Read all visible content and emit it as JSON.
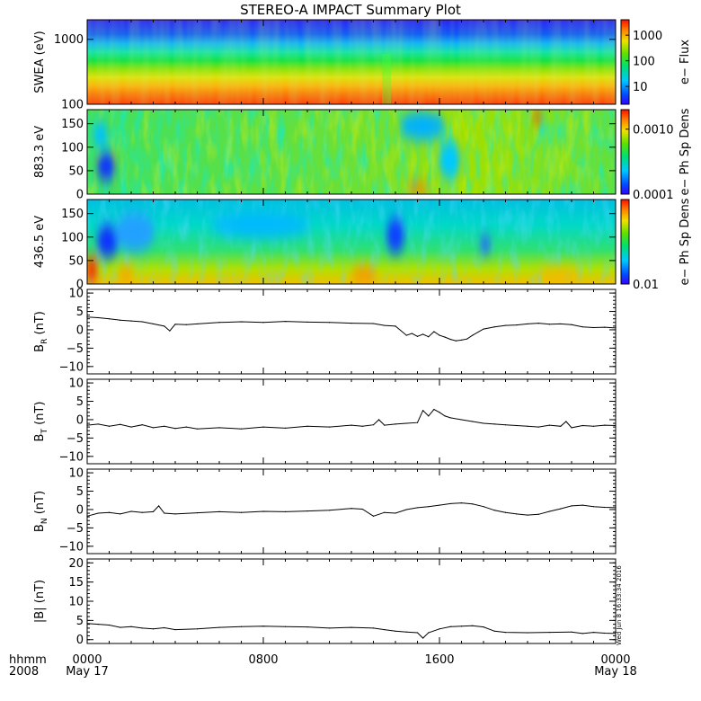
{
  "title": "STEREO-A IMPACT Summary Plot",
  "stamp": "Wed Jun  8 16:33:34 2016",
  "time_axis": {
    "label_line1": "hhmm",
    "label_line2": "2008",
    "ticks": [
      {
        "hours": 0,
        "label": "0000",
        "sub": "May 17"
      },
      {
        "hours": 8,
        "label": "0800",
        "sub": ""
      },
      {
        "hours": 16,
        "label": "1600",
        "sub": ""
      },
      {
        "hours": 24,
        "label": "0000",
        "sub": "May 18"
      }
    ]
  },
  "chart_data": [
    {
      "type": "heatmap",
      "ylabel": "SWEA (eV)",
      "yscale": "log",
      "ylim": [
        100,
        2000
      ],
      "yticks": [
        {
          "v": 100,
          "label": "100"
        },
        {
          "v": 1000,
          "label": "1000"
        }
      ],
      "colorbar": {
        "label": "e− Flux",
        "scale": "log",
        "range": [
          2,
          4000
        ],
        "ticks": [
          {
            "v": 10,
            "label": "10"
          },
          {
            "v": 100,
            "label": "100"
          },
          {
            "v": 1000,
            "label": "1000"
          }
        ]
      }
    },
    {
      "type": "heatmap",
      "ylabel": "883.3 eV",
      "ylim": [
        0,
        180
      ],
      "yticks": [
        {
          "v": 0,
          "label": "0"
        },
        {
          "v": 50,
          "label": "50"
        },
        {
          "v": 100,
          "label": "100"
        },
        {
          "v": 150,
          "label": "150"
        }
      ],
      "colorbar": {
        "label": "e− Ph Sp Dens",
        "scale": "log",
        "range": [
          0.0001,
          0.002
        ],
        "ticks": [
          {
            "v": 0.0001,
            "label": "0.0001"
          },
          {
            "v": 0.001,
            "label": "0.0010"
          }
        ]
      }
    },
    {
      "type": "heatmap",
      "ylabel": "436.5 eV",
      "ylim": [
        0,
        180
      ],
      "yticks": [
        {
          "v": 0,
          "label": "0"
        },
        {
          "v": 50,
          "label": "50"
        },
        {
          "v": 100,
          "label": "100"
        },
        {
          "v": 150,
          "label": "150"
        }
      ],
      "colorbar": {
        "label": "e− Ph Sp Dens",
        "scale": "log",
        "range": [
          0.01,
          0.1
        ],
        "ticks": [
          {
            "v": 0.01,
            "label": "0.01"
          }
        ]
      }
    },
    {
      "type": "line",
      "ylabel": "B",
      "ysub": "R",
      "yunit": " (nT)",
      "ylim": [
        -12,
        11
      ],
      "yticks": [
        {
          "v": -10,
          "label": "−10"
        },
        {
          "v": -5,
          "label": "−5"
        },
        {
          "v": 0,
          "label": "0"
        },
        {
          "v": 5,
          "label": "5"
        },
        {
          "v": 10,
          "label": "10"
        }
      ],
      "x": [
        0,
        0.5,
        1,
        1.5,
        2,
        2.5,
        3,
        3.5,
        3.75,
        4,
        4.5,
        5,
        6,
        7,
        8,
        9,
        10,
        11,
        12,
        13,
        13.5,
        14,
        14.5,
        14.75,
        15,
        15.25,
        15.5,
        15.75,
        16,
        16.25,
        16.5,
        16.75,
        17,
        17.25,
        17.5,
        18,
        18.5,
        19,
        19.5,
        20,
        20.5,
        21,
        21.5,
        22,
        22.5,
        23,
        23.5,
        24
      ],
      "y": [
        3.5,
        3.3,
        3.0,
        2.6,
        2.4,
        2.2,
        1.6,
        1.0,
        -0.3,
        1.5,
        1.4,
        1.6,
        2.0,
        2.2,
        2.0,
        2.3,
        2.1,
        2.0,
        1.8,
        1.7,
        1.2,
        1.0,
        -1.5,
        -1.0,
        -1.8,
        -1.2,
        -1.9,
        -0.5,
        -1.5,
        -2.0,
        -2.6,
        -3.0,
        -2.8,
        -2.5,
        -1.5,
        0.2,
        0.8,
        1.2,
        1.3,
        1.6,
        1.8,
        1.5,
        1.6,
        1.4,
        0.8,
        0.6,
        0.7,
        0.5
      ]
    },
    {
      "type": "line",
      "ylabel": "B",
      "ysub": "T",
      "yunit": " (nT)",
      "ylim": [
        -12,
        11
      ],
      "yticks": [
        {
          "v": -10,
          "label": "−10"
        },
        {
          "v": -5,
          "label": "−5"
        },
        {
          "v": 0,
          "label": "0"
        },
        {
          "v": 5,
          "label": "5"
        },
        {
          "v": 10,
          "label": "10"
        }
      ],
      "x": [
        0,
        0.5,
        1,
        1.5,
        2,
        2.5,
        3,
        3.5,
        4,
        4.5,
        5,
        6,
        7,
        8,
        9,
        10,
        11,
        12,
        12.5,
        13,
        13.25,
        13.5,
        14,
        14.5,
        15,
        15.25,
        15.5,
        15.75,
        16,
        16.25,
        16.5,
        17,
        17.5,
        18,
        18.5,
        19,
        19.5,
        20,
        20.5,
        21,
        21.5,
        21.75,
        22,
        22.5,
        23,
        23.5,
        24
      ],
      "y": [
        -1.5,
        -1.2,
        -1.8,
        -1.3,
        -2.0,
        -1.4,
        -2.2,
        -1.8,
        -2.4,
        -2.0,
        -2.5,
        -2.2,
        -2.5,
        -2.0,
        -2.3,
        -1.8,
        -2.0,
        -1.5,
        -1.8,
        -1.4,
        0.0,
        -1.5,
        -1.2,
        -1.0,
        -0.8,
        2.5,
        1.0,
        2.8,
        2.0,
        1.0,
        0.5,
        0.0,
        -0.5,
        -1.0,
        -1.2,
        -1.4,
        -1.6,
        -1.8,
        -2.0,
        -1.5,
        -1.8,
        -0.5,
        -2.2,
        -1.6,
        -1.8,
        -1.5,
        -1.6
      ]
    },
    {
      "type": "line",
      "ylabel": "B",
      "ysub": "N",
      "yunit": " (nT)",
      "ylim": [
        -12,
        11
      ],
      "yticks": [
        {
          "v": -10,
          "label": "−10"
        },
        {
          "v": -5,
          "label": "−5"
        },
        {
          "v": 0,
          "label": "0"
        },
        {
          "v": 5,
          "label": "5"
        },
        {
          "v": 10,
          "label": "10"
        }
      ],
      "x": [
        0,
        0.5,
        1,
        1.5,
        2,
        2.5,
        3,
        3.25,
        3.5,
        4,
        5,
        6,
        7,
        8,
        9,
        10,
        11,
        12,
        12.5,
        13,
        13.5,
        14,
        14.5,
        15,
        15.5,
        16,
        16.5,
        17,
        17.5,
        18,
        18.5,
        19,
        19.5,
        20,
        20.5,
        21,
        21.5,
        22,
        22.5,
        23,
        23.5,
        24
      ],
      "y": [
        -1.8,
        -1.0,
        -0.8,
        -1.2,
        -0.5,
        -0.8,
        -0.6,
        1.0,
        -1.0,
        -1.2,
        -0.9,
        -0.6,
        -0.8,
        -0.5,
        -0.6,
        -0.4,
        -0.2,
        0.3,
        0.1,
        -1.8,
        -0.8,
        -1.0,
        0.0,
        0.5,
        0.8,
        1.2,
        1.6,
        1.8,
        1.5,
        0.8,
        -0.2,
        -0.8,
        -1.2,
        -1.5,
        -1.3,
        -0.5,
        0.2,
        1.0,
        1.2,
        0.8,
        0.6,
        0.5
      ]
    },
    {
      "type": "line",
      "ylabel": "|B|",
      "ysub": "",
      "yunit": " (nT)",
      "ylim": [
        -1,
        21
      ],
      "yticks": [
        {
          "v": 0,
          "label": "0"
        },
        {
          "v": 5,
          "label": "5"
        },
        {
          "v": 10,
          "label": "10"
        },
        {
          "v": 15,
          "label": "15"
        },
        {
          "v": 20,
          "label": "20"
        }
      ],
      "x": [
        0,
        0.5,
        1,
        1.5,
        2,
        2.5,
        3,
        3.5,
        4,
        5,
        6,
        7,
        8,
        9,
        10,
        11,
        12,
        13,
        13.5,
        14,
        14.5,
        15,
        15.25,
        15.5,
        16,
        16.5,
        17,
        17.5,
        18,
        18.5,
        19,
        20,
        21,
        22,
        22.5,
        23,
        23.5,
        24
      ],
      "y": [
        4.2,
        4.0,
        3.8,
        3.2,
        3.4,
        3.0,
        2.8,
        3.1,
        2.6,
        2.8,
        3.2,
        3.4,
        3.5,
        3.4,
        3.3,
        3.0,
        3.2,
        3.0,
        2.6,
        2.2,
        2.0,
        1.8,
        0.4,
        1.8,
        2.8,
        3.4,
        3.5,
        3.6,
        3.3,
        2.2,
        1.9,
        1.8,
        1.9,
        2.0,
        1.6,
        1.9,
        1.7,
        1.6
      ]
    }
  ]
}
